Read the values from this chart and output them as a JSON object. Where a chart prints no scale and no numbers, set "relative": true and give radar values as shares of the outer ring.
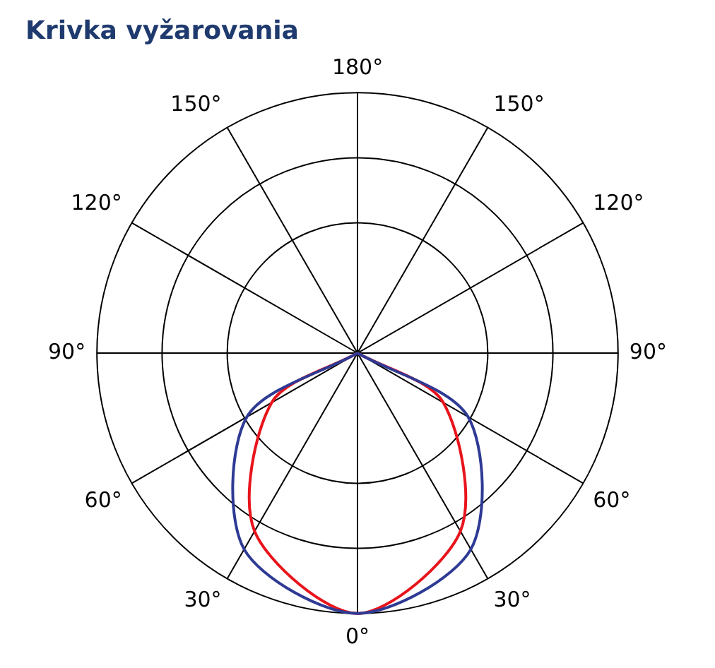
{
  "chart_data": {
    "type": "radar",
    "title": "Krivka vyžarovania",
    "relative": true,
    "grid": true,
    "legend": false,
    "marker": "none",
    "categories": [
      "180°",
      "150°",
      "120°",
      "90°",
      "60°",
      "30°",
      "0°",
      "30°",
      "60°",
      "90°",
      "120°",
      "150°"
    ],
    "series": [
      {
        "color": "#2e3a94",
        "values": [
          0,
          0,
          0,
          0,
          0.49,
          0.87,
          1,
          0.87,
          0.49,
          0,
          0,
          0
        ]
      },
      {
        "color": "#e8141c",
        "values": [
          0,
          0,
          0,
          0,
          0.38,
          0.79,
          1,
          0.79,
          0.38,
          0,
          0,
          0
        ]
      }
    ]
  }
}
